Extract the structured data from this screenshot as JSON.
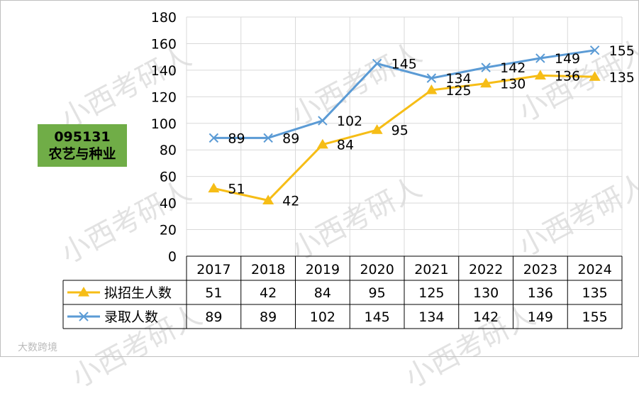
{
  "badge": {
    "code": "095131",
    "name": "农艺与种业"
  },
  "watermark": "小西考研人",
  "footer_watermark": "大数跨境",
  "colors": {
    "series1": "#f6bd16",
    "series2": "#5b9bd5",
    "grid": "#d9d9d9",
    "badge": "#70ad47"
  },
  "chart_data": {
    "type": "line",
    "categories": [
      "2017",
      "2018",
      "2019",
      "2020",
      "2021",
      "2022",
      "2023",
      "2024"
    ],
    "series": [
      {
        "name": "拟招生人数",
        "values": [
          51,
          42,
          84,
          95,
          125,
          130,
          136,
          135
        ],
        "marker": "triangle"
      },
      {
        "name": "录取人数",
        "values": [
          89,
          89,
          102,
          145,
          134,
          142,
          149,
          155
        ],
        "marker": "x"
      }
    ],
    "ylim": [
      0,
      180
    ],
    "yticks": [
      0,
      20,
      40,
      60,
      80,
      100,
      120,
      140,
      160,
      180
    ],
    "grid": true,
    "legend": "data-table",
    "xlabel": "",
    "ylabel": ""
  }
}
